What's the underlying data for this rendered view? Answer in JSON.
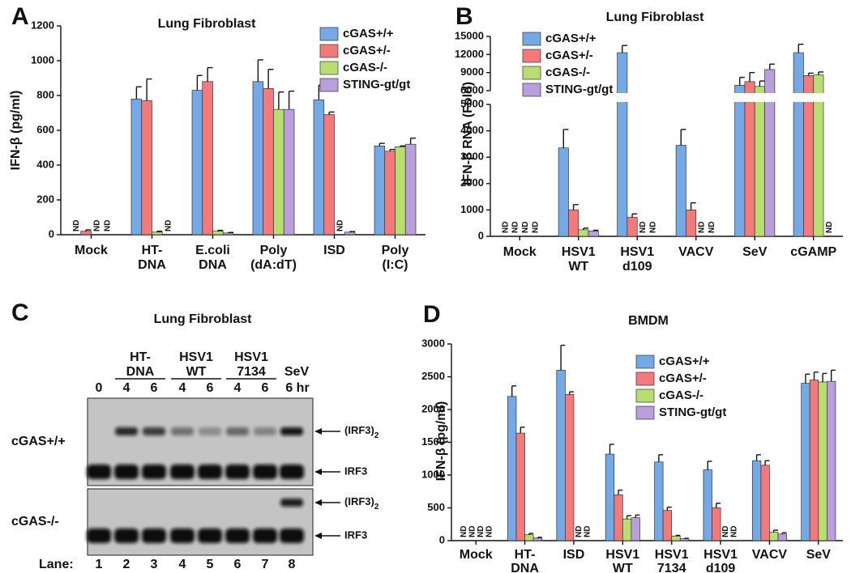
{
  "chart_data": [
    {
      "type": "bar",
      "panel_label": "A",
      "title": "Lung Fibroblast",
      "y_label": "IFN-β (pg/ml)",
      "categories": [
        "Mock",
        [
          "HT-",
          "DNA"
        ],
        [
          "E.coli",
          "DNA"
        ],
        [
          "Poly",
          "(dA:dT)"
        ],
        "ISD",
        [
          "Poly",
          "(I:C)"
        ]
      ],
      "series": [
        {
          "name": "cGAS+/+",
          "color": "#74a9e6",
          "values": [
            null,
            780,
            830,
            880,
            775,
            510
          ],
          "errors": [
            null,
            70,
            85,
            125,
            85,
            15
          ],
          "value_labels": [
            "ND",
            null,
            null,
            null,
            null,
            null
          ]
        },
        {
          "name": "cGAS+/-",
          "color": "#f37a7a",
          "values": [
            20,
            770,
            880,
            840,
            690,
            480
          ],
          "errors": [
            8,
            125,
            80,
            110,
            15,
            10
          ]
        },
        {
          "name": "cGAS-/-",
          "color": "#b8de72",
          "values": [
            null,
            15,
            20,
            720,
            null,
            505
          ],
          "errors": [
            null,
            5,
            5,
            100,
            null,
            5
          ],
          "value_labels": [
            "ND",
            null,
            null,
            null,
            "ND",
            null
          ]
        },
        {
          "name": "STING-gt/gt",
          "color": "#bb9fdc",
          "values": [
            null,
            null,
            10,
            720,
            15,
            520
          ],
          "errors": [
            null,
            null,
            3,
            105,
            3,
            35
          ],
          "value_labels": [
            "ND",
            "ND",
            null,
            null,
            null,
            null
          ]
        }
      ],
      "ylim": [
        0,
        1200
      ],
      "yticks": [
        0,
        200,
        400,
        600,
        800,
        1000,
        1200
      ]
    },
    {
      "type": "bar",
      "panel_label": "B",
      "title": "Lung Fibroblast",
      "y_label": "IFN-β RNA (Fold)",
      "categories": [
        "Mock",
        [
          "HSV1",
          "WT"
        ],
        [
          "HSV1",
          "d109"
        ],
        "VACV",
        "SeV",
        "cGAMP"
      ],
      "series": [
        {
          "name": "cGAS+/+",
          "color": "#74a9e6",
          "values": [
            null,
            3350,
            12300,
            3450,
            6900,
            12300
          ],
          "errors": [
            null,
            700,
            1200,
            600,
            1300,
            1400
          ],
          "value_labels": [
            "ND",
            null,
            null,
            null,
            null,
            null
          ]
        },
        {
          "name": "cGAS+/-",
          "color": "#f37a7a",
          "values": [
            null,
            1000,
            720,
            1000,
            7500,
            8500
          ],
          "errors": [
            null,
            200,
            130,
            270,
            1500,
            400
          ],
          "value_labels": [
            "ND",
            null,
            null,
            null,
            null,
            null
          ]
        },
        {
          "name": "cGAS-/-",
          "color": "#b8de72",
          "values": [
            null,
            250,
            null,
            null,
            6700,
            8600
          ],
          "errors": [
            null,
            60,
            null,
            null,
            900,
            500
          ],
          "value_labels": [
            "ND",
            null,
            "ND",
            "ND",
            null,
            null
          ]
        },
        {
          "name": "STING-gt/gt",
          "color": "#bb9fdc",
          "values": [
            null,
            200,
            null,
            null,
            9500,
            null
          ],
          "errors": [
            null,
            30,
            null,
            null,
            900,
            null
          ],
          "value_labels": [
            "ND",
            null,
            "ND",
            "ND",
            null,
            "ND"
          ]
        }
      ],
      "ylim": [
        0,
        15000
      ],
      "ybreak": [
        5000,
        6000
      ],
      "yticks": [
        0,
        1000,
        2000,
        3000,
        4000,
        5000,
        6000,
        9000,
        12000,
        15000
      ]
    },
    {
      "type": "gel",
      "panel_label": "C",
      "title": "Lung Fibroblast",
      "groups": [
        [
          "HT-",
          "DNA"
        ],
        [
          "HSV1",
          "WT"
        ],
        [
          "HSV1",
          "7134"
        ],
        "SeV"
      ],
      "times": [
        "0",
        "4",
        "6",
        "4",
        "6",
        "4",
        "6",
        "6 hr"
      ],
      "rows": [
        "cGAS+/+",
        "cGAS-/-"
      ],
      "dimer_label": "(IRF3)",
      "dimer_subscript": "2",
      "monomer_label": "IRF3",
      "lane_title": "Lane:",
      "lanes": [
        1,
        2,
        3,
        4,
        5,
        6,
        7,
        8
      ]
    },
    {
      "type": "bar",
      "panel_label": "D",
      "title": "BMDM",
      "y_label": "IFN-β (pg/ml)",
      "categories": [
        "Mock",
        [
          "HT-",
          "DNA"
        ],
        "ISD",
        [
          "HSV1",
          "WT"
        ],
        [
          "HSV1",
          "7134"
        ],
        [
          "HSV1",
          "d109"
        ],
        "VACV",
        "SeV"
      ],
      "series": [
        {
          "name": "cGAS+/+",
          "color": "#74a9e6",
          "values": [
            null,
            2200,
            2600,
            1320,
            1200,
            1080,
            1220,
            2400
          ],
          "errors": [
            null,
            160,
            380,
            150,
            110,
            130,
            90,
            140
          ],
          "value_labels": [
            "ND",
            null,
            null,
            null,
            null,
            null,
            null,
            null
          ]
        },
        {
          "name": "cGAS+/-",
          "color": "#f37a7a",
          "values": [
            null,
            1640,
            2230,
            700,
            460,
            500,
            1150,
            2450
          ],
          "errors": [
            null,
            90,
            40,
            70,
            50,
            70,
            70,
            120
          ],
          "value_labels": [
            "ND",
            null,
            null,
            null,
            null,
            null,
            null,
            null
          ]
        },
        {
          "name": "cGAS-/-",
          "color": "#b8de72",
          "values": [
            null,
            90,
            null,
            330,
            70,
            null,
            130,
            2420
          ],
          "errors": [
            null,
            20,
            null,
            50,
            10,
            null,
            30,
            130
          ],
          "value_labels": [
            "ND",
            null,
            "ND",
            null,
            null,
            "ND",
            null,
            null
          ]
        },
        {
          "name": "STING-gt/gt",
          "color": "#bb9fdc",
          "values": [
            null,
            40,
            null,
            350,
            30,
            null,
            100,
            2430
          ],
          "errors": [
            null,
            10,
            null,
            40,
            5,
            null,
            20,
            170
          ],
          "value_labels": [
            "ND",
            null,
            "ND",
            null,
            null,
            "ND",
            null,
            null
          ]
        }
      ],
      "ylim": [
        0,
        3000
      ],
      "yticks": [
        0,
        500,
        1000,
        1500,
        2000,
        2500,
        3000
      ]
    }
  ]
}
